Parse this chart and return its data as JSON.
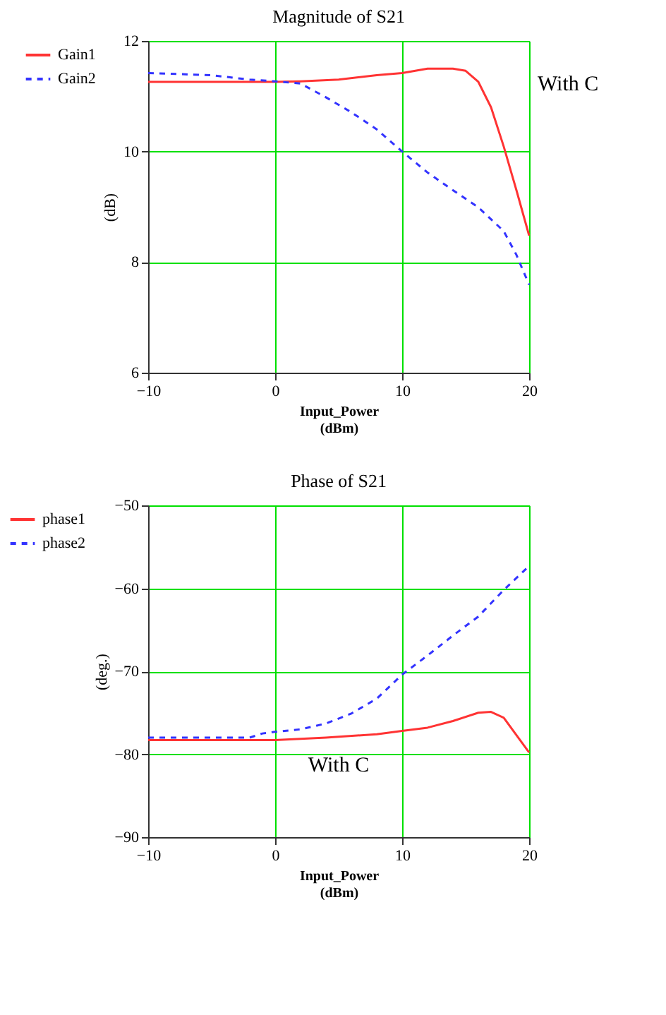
{
  "chart_data": [
    {
      "type": "line",
      "title": "Magnitude of S21",
      "xlabel": "Input_Power\n(dBm)",
      "ylabel": "(dB)",
      "annotations": [
        "With C"
      ],
      "xlim": [
        -10,
        20
      ],
      "xticks": [
        -10,
        0,
        10,
        20
      ],
      "ylim": [
        6,
        12
      ],
      "yticks": [
        6,
        8,
        10,
        12
      ],
      "grid": true,
      "legend": "left",
      "marker": "none",
      "series": [
        {
          "name": "Gain1",
          "color": "#ff3333",
          "line_style": "solid",
          "x": [
            -10,
            -5,
            0,
            2,
            5,
            8,
            10,
            12,
            14,
            15,
            16,
            17,
            18,
            19,
            20
          ],
          "values": [
            11.26,
            11.26,
            11.26,
            11.27,
            11.3,
            11.38,
            11.42,
            11.5,
            11.5,
            11.46,
            11.26,
            10.8,
            10.09,
            9.3,
            8.48
          ]
        },
        {
          "name": "Gain2",
          "color": "#3333ff",
          "line_style": "dashed",
          "x": [
            -10,
            -5,
            -2,
            0,
            2,
            4,
            6,
            8,
            10,
            12,
            14,
            16,
            18,
            19,
            20
          ],
          "values": [
            11.42,
            11.38,
            11.3,
            11.27,
            11.23,
            10.98,
            10.71,
            10.4,
            10.0,
            9.62,
            9.3,
            8.99,
            8.56,
            8.13,
            7.59
          ]
        }
      ]
    },
    {
      "type": "line",
      "title": "Phase of S21",
      "xlabel": "Input_Power\n(dBm)",
      "ylabel": "(deg.)",
      "annotations": [
        "With C"
      ],
      "xlim": [
        -10,
        20
      ],
      "xticks": [
        -10,
        0,
        10,
        20
      ],
      "ylim": [
        -90,
        -50
      ],
      "yticks": [
        -90,
        -80,
        -70,
        -60,
        -50
      ],
      "grid": true,
      "legend": "left",
      "marker": "none",
      "series": [
        {
          "name": "phase1",
          "color": "#ff3333",
          "line_style": "solid",
          "x": [
            -10,
            -5,
            0,
            4,
            8,
            10,
            12,
            14,
            16,
            17,
            18,
            20
          ],
          "values": [
            -78.3,
            -78.3,
            -78.3,
            -78.0,
            -77.6,
            -77.2,
            -76.8,
            -76.0,
            -75.0,
            -74.9,
            -75.6,
            -79.8
          ]
        },
        {
          "name": "phase2",
          "color": "#3333ff",
          "line_style": "dashed",
          "x": [
            -10,
            -5,
            -2,
            -1,
            0,
            2,
            4,
            6,
            8,
            10,
            12,
            14,
            16,
            18,
            20
          ],
          "values": [
            -78.0,
            -78.0,
            -78.0,
            -77.5,
            -77.3,
            -77.0,
            -76.3,
            -75.1,
            -73.3,
            -70.4,
            -68.1,
            -65.7,
            -63.4,
            -60.2,
            -57.3
          ]
        }
      ]
    }
  ]
}
